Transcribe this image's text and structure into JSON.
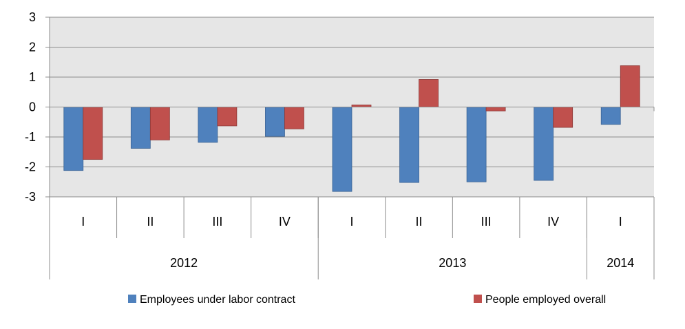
{
  "chart_data": {
    "type": "bar",
    "title": "",
    "xlabel": "",
    "ylabel": "",
    "ylim": [
      -3,
      3
    ],
    "yticks": [
      3,
      2,
      1,
      0,
      -1,
      -2,
      -3
    ],
    "categories": [
      "I",
      "II",
      "III",
      "IV",
      "I",
      "II",
      "III",
      "IV",
      "I"
    ],
    "groups": [
      {
        "label": "2012",
        "span": 4
      },
      {
        "label": "2013",
        "span": 4
      },
      {
        "label": "2014",
        "span": 1
      }
    ],
    "series": [
      {
        "name": "Employees under labor contract",
        "color": "#4f81bd",
        "values": [
          -2.12,
          -1.38,
          -1.18,
          -0.98,
          -2.82,
          -2.52,
          -2.5,
          -2.45,
          -0.58
        ]
      },
      {
        "name": "People employed overall",
        "color": "#c0504d",
        "values": [
          -1.75,
          -1.1,
          -0.63,
          -0.73,
          0.07,
          0.92,
          -0.13,
          -0.68,
          1.38
        ]
      }
    ],
    "grid": true,
    "plot_background": "#e6e6e6",
    "legend": "bottom"
  }
}
